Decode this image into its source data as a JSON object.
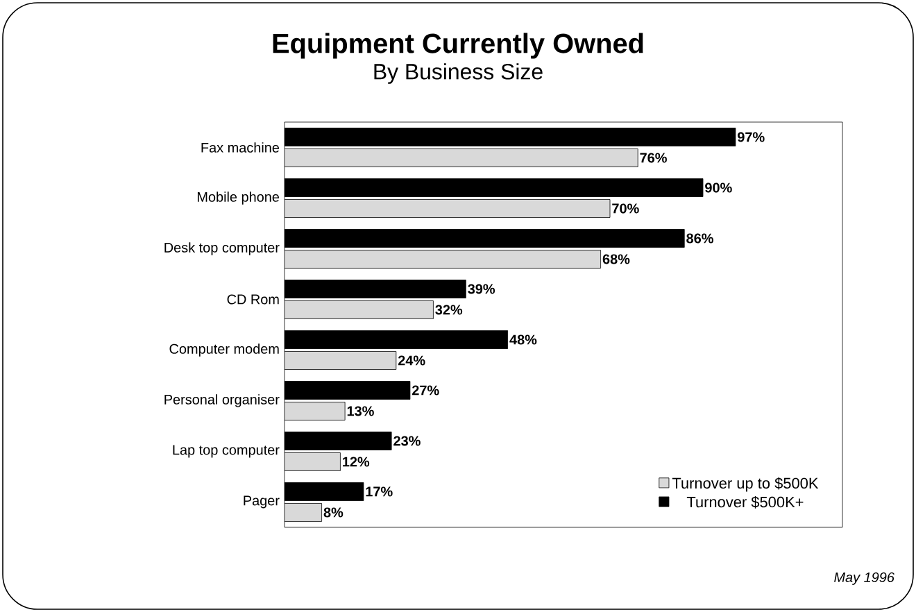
{
  "chart_data": {
    "type": "bar",
    "orientation": "horizontal",
    "title": "Equipment Currently Owned",
    "subtitle": "By Business Size",
    "categories": [
      "Fax machine",
      "Mobile phone",
      "Desk top computer",
      "CD Rom",
      "Computer modem",
      "Personal organiser",
      "Lap top computer",
      "Pager"
    ],
    "series": [
      {
        "name": "Turnover up to $500K",
        "color": "#d9d9d9",
        "values": [
          76,
          70,
          68,
          32,
          24,
          13,
          12,
          8
        ],
        "value_labels": [
          "76%",
          "70%",
          "68%",
          "32%",
          "24%",
          "13%",
          "12%",
          "8%"
        ]
      },
      {
        "name": "Turnover $500K+",
        "color": "#000000",
        "values": [
          97,
          90,
          86,
          39,
          48,
          27,
          23,
          17
        ],
        "value_labels": [
          "97%",
          "90%",
          "86%",
          "39%",
          "48%",
          "27%",
          "23%",
          "17%"
        ]
      }
    ],
    "xlim": [
      0,
      120
    ],
    "tick_labels": "y",
    "legend": "bottom right",
    "annotations": [
      "May 1996"
    ]
  }
}
